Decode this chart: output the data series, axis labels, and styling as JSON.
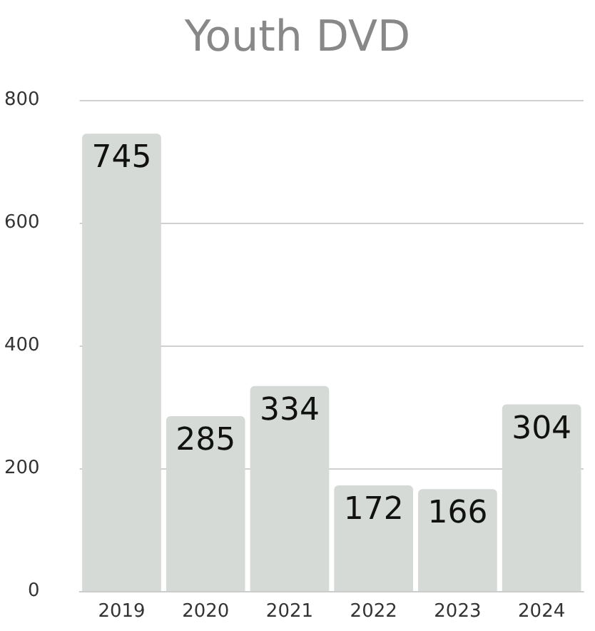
{
  "chart_data": {
    "type": "bar",
    "title": "Youth DVD",
    "categories": [
      "2019",
      "2020",
      "2021",
      "2022",
      "2023",
      "2024"
    ],
    "values": [
      745,
      285,
      334,
      172,
      166,
      304
    ],
    "color": "#d5dad6",
    "ylim": [
      0,
      800
    ],
    "yticks": [
      0,
      200,
      400,
      600,
      800
    ],
    "grid": "y",
    "data_labels": true
  }
}
